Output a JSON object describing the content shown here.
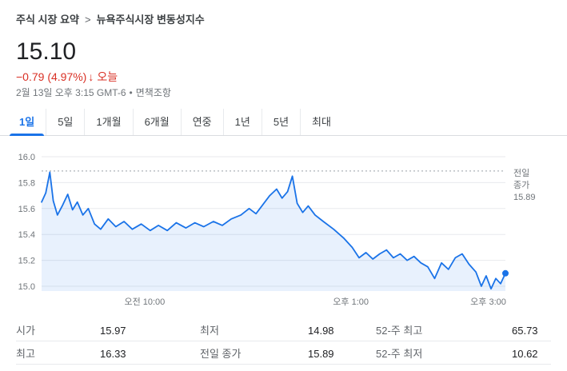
{
  "breadcrumb": {
    "root": "주식 시장 요약",
    "separator": ">",
    "current": "뉴욕주식시장 변동성지수"
  },
  "quote": {
    "price": "15.10",
    "change": "−0.79 (4.97%)",
    "change_arrow": "↓",
    "change_period": "오늘",
    "timestamp": "2월 13일 오후 3:15 GMT-6",
    "bullet": "•",
    "disclaimer": "면책조항"
  },
  "tabs": [
    {
      "label": "1일",
      "selected": true
    },
    {
      "label": "5일",
      "selected": false
    },
    {
      "label": "1개월",
      "selected": false
    },
    {
      "label": "6개월",
      "selected": false
    },
    {
      "label": "연중",
      "selected": false
    },
    {
      "label": "1년",
      "selected": false
    },
    {
      "label": "5년",
      "selected": false
    },
    {
      "label": "최대",
      "selected": false
    }
  ],
  "chart_data": {
    "type": "line",
    "series_name": "뉴욕주식시장 변동성지수",
    "t_range": [
      8.5,
      15.25
    ],
    "points": [
      [
        8.5,
        15.65
      ],
      [
        8.56,
        15.72
      ],
      [
        8.62,
        15.88
      ],
      [
        8.67,
        15.66
      ],
      [
        8.73,
        15.55
      ],
      [
        8.8,
        15.62
      ],
      [
        8.88,
        15.71
      ],
      [
        8.95,
        15.59
      ],
      [
        9.02,
        15.65
      ],
      [
        9.1,
        15.55
      ],
      [
        9.18,
        15.6
      ],
      [
        9.27,
        15.48
      ],
      [
        9.36,
        15.44
      ],
      [
        9.47,
        15.52
      ],
      [
        9.58,
        15.46
      ],
      [
        9.7,
        15.5
      ],
      [
        9.82,
        15.44
      ],
      [
        9.95,
        15.48
      ],
      [
        10.08,
        15.43
      ],
      [
        10.2,
        15.47
      ],
      [
        10.33,
        15.43
      ],
      [
        10.46,
        15.49
      ],
      [
        10.6,
        15.45
      ],
      [
        10.73,
        15.49
      ],
      [
        10.86,
        15.46
      ],
      [
        11.0,
        15.5
      ],
      [
        11.13,
        15.47
      ],
      [
        11.26,
        15.52
      ],
      [
        11.4,
        15.55
      ],
      [
        11.52,
        15.6
      ],
      [
        11.62,
        15.56
      ],
      [
        11.72,
        15.63
      ],
      [
        11.82,
        15.7
      ],
      [
        11.92,
        15.75
      ],
      [
        12.0,
        15.68
      ],
      [
        12.08,
        15.73
      ],
      [
        12.15,
        15.85
      ],
      [
        12.22,
        15.64
      ],
      [
        12.3,
        15.57
      ],
      [
        12.38,
        15.62
      ],
      [
        12.48,
        15.55
      ],
      [
        12.6,
        15.5
      ],
      [
        12.75,
        15.44
      ],
      [
        12.9,
        15.37
      ],
      [
        13.02,
        15.3
      ],
      [
        13.12,
        15.22
      ],
      [
        13.22,
        15.26
      ],
      [
        13.32,
        15.21
      ],
      [
        13.42,
        15.25
      ],
      [
        13.52,
        15.28
      ],
      [
        13.62,
        15.22
      ],
      [
        13.72,
        15.25
      ],
      [
        13.82,
        15.2
      ],
      [
        13.92,
        15.23
      ],
      [
        14.02,
        15.18
      ],
      [
        14.12,
        15.15
      ],
      [
        14.22,
        15.06
      ],
      [
        14.32,
        15.18
      ],
      [
        14.42,
        15.13
      ],
      [
        14.52,
        15.22
      ],
      [
        14.62,
        15.25
      ],
      [
        14.72,
        15.17
      ],
      [
        14.82,
        15.11
      ],
      [
        14.9,
        15.0
      ],
      [
        14.97,
        15.08
      ],
      [
        15.04,
        14.98
      ],
      [
        15.11,
        15.06
      ],
      [
        15.18,
        15.02
      ],
      [
        15.25,
        15.1
      ]
    ],
    "y_ticks": [
      "16.0",
      "15.8",
      "15.6",
      "15.4",
      "15.2",
      "15.0"
    ],
    "y_tick_values": [
      16.0,
      15.8,
      15.6,
      15.4,
      15.2,
      15.0
    ],
    "ylim": [
      14.95,
      16.05
    ],
    "x_axis_labels": [
      {
        "label": "오전 10:00",
        "t": 10.0
      },
      {
        "label": "오후 1:00",
        "t": 13.0
      },
      {
        "label": "오후 3:00",
        "t": 15.0
      }
    ],
    "prev_close": {
      "lines": [
        "전일",
        "종가",
        "15.89"
      ],
      "value": 15.89
    },
    "last_point": {
      "t": 15.25,
      "value": 15.1
    },
    "line_color": "#1a73e8",
    "fill_color": "rgba(26,115,232,0.10)",
    "grid": true,
    "legend": "none"
  },
  "stats": {
    "rows": [
      [
        {
          "label": "시가",
          "value": "15.97"
        },
        {
          "label": "최저",
          "value": "14.98"
        },
        {
          "label": "52-주 최고",
          "value": "65.73"
        }
      ],
      [
        {
          "label": "최고",
          "value": "16.33"
        },
        {
          "label": "전일 종가",
          "value": "15.89"
        },
        {
          "label": "52-주 최저",
          "value": "10.62"
        }
      ]
    ]
  },
  "colors": {
    "accent_blue": "#1a73e8",
    "negative_red": "#d93025",
    "text_primary": "#202124",
    "text_secondary": "#5f6368",
    "grid_line": "#e8eaed",
    "divider": "#dadce0",
    "prev_close_line": "#9aa0a6"
  }
}
